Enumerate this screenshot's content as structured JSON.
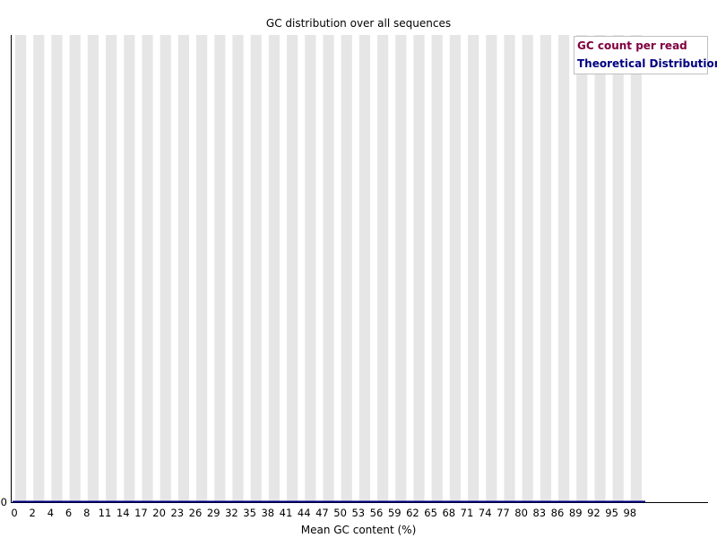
{
  "chart_data": {
    "type": "line",
    "title": "GC distribution over all sequences",
    "xlabel": "Mean GC content (%)",
    "ylabel": "",
    "x": [
      0,
      2,
      4,
      6,
      8,
      11,
      14,
      17,
      20,
      23,
      26,
      29,
      32,
      35,
      38,
      41,
      44,
      47,
      50,
      53,
      56,
      59,
      62,
      65,
      68,
      71,
      74,
      77,
      80,
      83,
      86,
      89,
      92,
      95,
      98
    ],
    "x_tick_labels": [
      "0",
      "2",
      "4",
      "6",
      "8",
      "11",
      "14",
      "17",
      "20",
      "23",
      "26",
      "29",
      "32",
      "35",
      "38",
      "41",
      "44",
      "47",
      "50",
      "53",
      "56",
      "59",
      "62",
      "65",
      "68",
      "71",
      "74",
      "77",
      "80",
      "83",
      "86",
      "89",
      "92",
      "95",
      "98"
    ],
    "y_tick_labels": [
      "0"
    ],
    "ylim": [
      0,
      1
    ],
    "series": [
      {
        "name": "GC count per read",
        "color": "#800040",
        "values": [
          0,
          0,
          0,
          0,
          0,
          0,
          0,
          0,
          0,
          0,
          0,
          0,
          0,
          0,
          0,
          0,
          0,
          0,
          0,
          0,
          0,
          0,
          0,
          0,
          0,
          0,
          0,
          0,
          0,
          0,
          0,
          0,
          0,
          0,
          0
        ]
      },
      {
        "name": "Theoretical Distribution",
        "color": "#000080",
        "values": [
          0,
          0,
          0,
          0,
          0,
          0,
          0,
          0,
          0,
          0,
          0,
          0,
          0,
          0,
          0,
          0,
          0,
          0,
          0,
          0,
          0,
          0,
          0,
          0,
          0,
          0,
          0,
          0,
          0,
          0,
          0,
          0,
          0,
          0,
          0
        ]
      }
    ],
    "grid": true,
    "stripe_color": "#e6e6e6",
    "legend_position": "top-right"
  }
}
